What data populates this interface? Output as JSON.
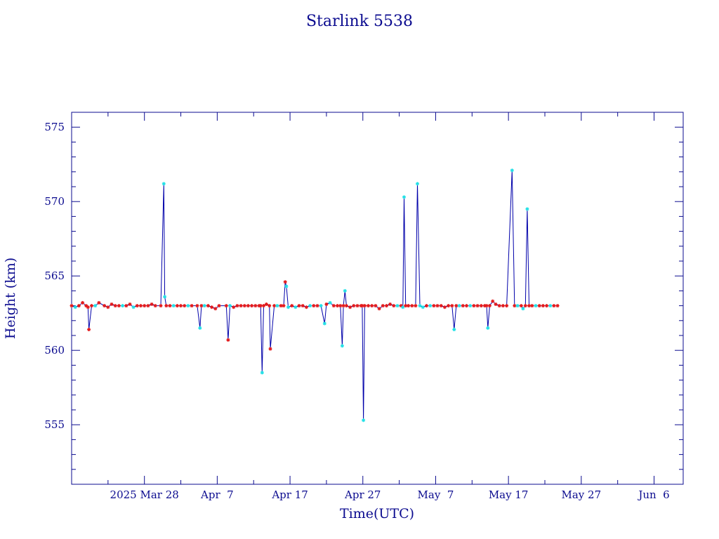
{
  "chart_data": {
    "type": "line",
    "title": "Starlink 5538",
    "xlabel": "Time(UTC)",
    "ylabel": "Height (km)",
    "x_axis": {
      "type": "date",
      "start": "2025-03-18",
      "end": "2025-06-10",
      "tick_labels": [
        {
          "date": "2025-03-28",
          "label": "2025 Mar 28"
        },
        {
          "date": "2025-04-07",
          "label": "Apr  7"
        },
        {
          "date": "2025-04-17",
          "label": "Apr 17"
        },
        {
          "date": "2025-04-27",
          "label": "Apr 27"
        },
        {
          "date": "2025-05-07",
          "label": "May  7"
        },
        {
          "date": "2025-05-17",
          "label": "May 17"
        },
        {
          "date": "2025-05-27",
          "label": "May 27"
        },
        {
          "date": "2025-06-06",
          "label": "Jun  6"
        }
      ],
      "major_tick_days": 10,
      "minor_tick_days": 5
    },
    "y_axis": {
      "range": [
        551,
        576
      ],
      "ticks": [
        555,
        560,
        565,
        570,
        575
      ],
      "minor_step": 1
    },
    "grid": false,
    "series": [
      {
        "line_color": "#0000aa",
        "points": [
          {
            "x": "2025-03-18T00:00",
            "y": 563.0,
            "c": "r"
          },
          {
            "x": "2025-03-18T12:00",
            "y": 562.9,
            "c": "c"
          },
          {
            "x": "2025-03-19T00:00",
            "y": 563.0,
            "c": "r"
          },
          {
            "x": "2025-03-19T12:00",
            "y": 563.2,
            "c": "r"
          },
          {
            "x": "2025-03-20T00:00",
            "y": 563.0,
            "c": "r"
          },
          {
            "x": "2025-03-20T06:00",
            "y": 562.9,
            "c": "r"
          },
          {
            "x": "2025-03-20T09:00",
            "y": 561.4,
            "c": "r"
          },
          {
            "x": "2025-03-20T18:00",
            "y": 563.0,
            "c": "r"
          },
          {
            "x": "2025-03-21T06:00",
            "y": 563.0,
            "c": "c"
          },
          {
            "x": "2025-03-21T18:00",
            "y": 563.2,
            "c": "r"
          },
          {
            "x": "2025-03-22T12:00",
            "y": 563.0,
            "c": "r"
          },
          {
            "x": "2025-03-23T00:00",
            "y": 562.9,
            "c": "r"
          },
          {
            "x": "2025-03-23T12:00",
            "y": 563.1,
            "c": "r"
          },
          {
            "x": "2025-03-24T00:00",
            "y": 563.0,
            "c": "r"
          },
          {
            "x": "2025-03-24T12:00",
            "y": 563.0,
            "c": "r"
          },
          {
            "x": "2025-03-25T00:00",
            "y": 563.0,
            "c": "c"
          },
          {
            "x": "2025-03-25T12:00",
            "y": 563.0,
            "c": "r"
          },
          {
            "x": "2025-03-26T00:00",
            "y": 563.1,
            "c": "r"
          },
          {
            "x": "2025-03-26T12:00",
            "y": 562.9,
            "c": "c"
          },
          {
            "x": "2025-03-27T00:00",
            "y": 563.0,
            "c": "r"
          },
          {
            "x": "2025-03-27T12:00",
            "y": 563.0,
            "c": "r"
          },
          {
            "x": "2025-03-28T00:00",
            "y": 563.0,
            "c": "r"
          },
          {
            "x": "2025-03-28T12:00",
            "y": 563.0,
            "c": "r"
          },
          {
            "x": "2025-03-29T00:00",
            "y": 563.1,
            "c": "r"
          },
          {
            "x": "2025-03-29T12:00",
            "y": 563.0,
            "c": "r"
          },
          {
            "x": "2025-03-30T06:00",
            "y": 563.0,
            "c": "r"
          },
          {
            "x": "2025-03-30T16:00",
            "y": 571.2,
            "c": "c"
          },
          {
            "x": "2025-03-30T19:00",
            "y": 563.6,
            "c": "c"
          },
          {
            "x": "2025-03-31T00:00",
            "y": 563.0,
            "c": "r"
          },
          {
            "x": "2025-03-31T12:00",
            "y": 563.0,
            "c": "r"
          },
          {
            "x": "2025-04-01T00:00",
            "y": 563.0,
            "c": "c"
          },
          {
            "x": "2025-04-01T12:00",
            "y": 563.0,
            "c": "r"
          },
          {
            "x": "2025-04-02T00:00",
            "y": 563.0,
            "c": "r"
          },
          {
            "x": "2025-04-02T12:00",
            "y": 563.0,
            "c": "r"
          },
          {
            "x": "2025-04-03T00:00",
            "y": 563.0,
            "c": "c"
          },
          {
            "x": "2025-04-03T12:00",
            "y": 563.0,
            "c": "r"
          },
          {
            "x": "2025-04-04T06:00",
            "y": 563.0,
            "c": "r"
          },
          {
            "x": "2025-04-04T15:00",
            "y": 561.5,
            "c": "c"
          },
          {
            "x": "2025-04-04T20:00",
            "y": 563.0,
            "c": "r"
          },
          {
            "x": "2025-04-05T06:00",
            "y": 563.0,
            "c": "c"
          },
          {
            "x": "2025-04-05T18:00",
            "y": 563.0,
            "c": "r"
          },
          {
            "x": "2025-04-06T06:00",
            "y": 562.9,
            "c": "r"
          },
          {
            "x": "2025-04-06T18:00",
            "y": 562.8,
            "c": "r"
          },
          {
            "x": "2025-04-07T06:00",
            "y": 563.0,
            "c": "r"
          },
          {
            "x": "2025-04-08T06:00",
            "y": 563.0,
            "c": "r"
          },
          {
            "x": "2025-04-08T12:00",
            "y": 560.7,
            "c": "r"
          },
          {
            "x": "2025-04-08T18:00",
            "y": 563.0,
            "c": "c"
          },
          {
            "x": "2025-04-09T06:00",
            "y": 562.9,
            "c": "r"
          },
          {
            "x": "2025-04-09T18:00",
            "y": 563.0,
            "c": "r"
          },
          {
            "x": "2025-04-10T06:00",
            "y": 563.0,
            "c": "r"
          },
          {
            "x": "2025-04-10T18:00",
            "y": 563.0,
            "c": "r"
          },
          {
            "x": "2025-04-11T06:00",
            "y": 563.0,
            "c": "r"
          },
          {
            "x": "2025-04-11T18:00",
            "y": 563.0,
            "c": "r"
          },
          {
            "x": "2025-04-12T06:00",
            "y": 563.0,
            "c": "r"
          },
          {
            "x": "2025-04-12T18:00",
            "y": 563.0,
            "c": "r"
          },
          {
            "x": "2025-04-12T23:00",
            "y": 563.0,
            "c": "r"
          },
          {
            "x": "2025-04-13T04:00",
            "y": 558.5,
            "c": "c"
          },
          {
            "x": "2025-04-13T09:00",
            "y": 563.0,
            "c": "r"
          },
          {
            "x": "2025-04-13T18:00",
            "y": 563.1,
            "c": "r"
          },
          {
            "x": "2025-04-14T04:00",
            "y": 563.0,
            "c": "r"
          },
          {
            "x": "2025-04-14T07:00",
            "y": 560.1,
            "c": "r"
          },
          {
            "x": "2025-04-14T20:00",
            "y": 563.0,
            "c": "r"
          },
          {
            "x": "2025-04-15T06:00",
            "y": 563.0,
            "c": "c"
          },
          {
            "x": "2025-04-15T18:00",
            "y": 563.0,
            "c": "r"
          },
          {
            "x": "2025-04-16T03:00",
            "y": 563.0,
            "c": "r"
          },
          {
            "x": "2025-04-16T08:00",
            "y": 564.6,
            "c": "r"
          },
          {
            "x": "2025-04-16T12:00",
            "y": 564.3,
            "c": "c"
          },
          {
            "x": "2025-04-16T18:00",
            "y": 562.9,
            "c": "c"
          },
          {
            "x": "2025-04-17T06:00",
            "y": 563.0,
            "c": "r"
          },
          {
            "x": "2025-04-17T18:00",
            "y": 562.9,
            "c": "c"
          },
          {
            "x": "2025-04-18T06:00",
            "y": 563.0,
            "c": "r"
          },
          {
            "x": "2025-04-18T18:00",
            "y": 563.0,
            "c": "r"
          },
          {
            "x": "2025-04-19T06:00",
            "y": 562.9,
            "c": "r"
          },
          {
            "x": "2025-04-19T18:00",
            "y": 563.0,
            "c": "c"
          },
          {
            "x": "2025-04-20T06:00",
            "y": 563.0,
            "c": "r"
          },
          {
            "x": "2025-04-20T18:00",
            "y": 563.0,
            "c": "r"
          },
          {
            "x": "2025-04-21T06:00",
            "y": 563.0,
            "c": "c"
          },
          {
            "x": "2025-04-21T18:00",
            "y": 561.8,
            "c": "c"
          },
          {
            "x": "2025-04-22T00:00",
            "y": 563.1,
            "c": "r"
          },
          {
            "x": "2025-04-22T12:00",
            "y": 563.2,
            "c": "c"
          },
          {
            "x": "2025-04-23T00:00",
            "y": 563.0,
            "c": "r"
          },
          {
            "x": "2025-04-23T12:00",
            "y": 563.0,
            "c": "r"
          },
          {
            "x": "2025-04-23T22:00",
            "y": 563.0,
            "c": "r"
          },
          {
            "x": "2025-04-24T04:00",
            "y": 560.3,
            "c": "c"
          },
          {
            "x": "2025-04-24T08:00",
            "y": 563.0,
            "c": "r"
          },
          {
            "x": "2025-04-24T13:00",
            "y": 564.0,
            "c": "c"
          },
          {
            "x": "2025-04-24T18:00",
            "y": 563.0,
            "c": "r"
          },
          {
            "x": "2025-04-25T06:00",
            "y": 562.9,
            "c": "r"
          },
          {
            "x": "2025-04-25T18:00",
            "y": 563.0,
            "c": "r"
          },
          {
            "x": "2025-04-26T06:00",
            "y": 563.0,
            "c": "r"
          },
          {
            "x": "2025-04-26T18:00",
            "y": 563.0,
            "c": "r"
          },
          {
            "x": "2025-04-26T22:00",
            "y": 563.0,
            "c": "r"
          },
          {
            "x": "2025-04-27T02:00",
            "y": 555.3,
            "c": "c"
          },
          {
            "x": "2025-04-27T06:00",
            "y": 563.0,
            "c": "r"
          },
          {
            "x": "2025-04-27T18:00",
            "y": 563.0,
            "c": "r"
          },
          {
            "x": "2025-04-28T06:00",
            "y": 563.0,
            "c": "r"
          },
          {
            "x": "2025-04-28T18:00",
            "y": 563.0,
            "c": "r"
          },
          {
            "x": "2025-04-29T06:00",
            "y": 562.8,
            "c": "r"
          },
          {
            "x": "2025-04-29T18:00",
            "y": 563.0,
            "c": "r"
          },
          {
            "x": "2025-04-30T06:00",
            "y": 563.0,
            "c": "r"
          },
          {
            "x": "2025-04-30T18:00",
            "y": 563.1,
            "c": "r"
          },
          {
            "x": "2025-05-01T06:00",
            "y": 563.0,
            "c": "r"
          },
          {
            "x": "2025-05-01T18:00",
            "y": 563.0,
            "c": "c"
          },
          {
            "x": "2025-05-02T06:00",
            "y": 563.0,
            "c": "r"
          },
          {
            "x": "2025-05-02T12:00",
            "y": 562.9,
            "c": "c"
          },
          {
            "x": "2025-05-02T16:00",
            "y": 570.3,
            "c": "c"
          },
          {
            "x": "2025-05-02T21:00",
            "y": 563.0,
            "c": "r"
          },
          {
            "x": "2025-05-03T06:00",
            "y": 563.0,
            "c": "r"
          },
          {
            "x": "2025-05-03T18:00",
            "y": 563.0,
            "c": "r"
          },
          {
            "x": "2025-05-04T06:00",
            "y": 563.0,
            "c": "r"
          },
          {
            "x": "2025-05-04T12:00",
            "y": 571.2,
            "c": "c"
          },
          {
            "x": "2025-05-04T20:00",
            "y": 563.0,
            "c": "c"
          },
          {
            "x": "2025-05-05T06:00",
            "y": 562.9,
            "c": "c"
          },
          {
            "x": "2025-05-05T18:00",
            "y": 563.0,
            "c": "r"
          },
          {
            "x": "2025-05-06T06:00",
            "y": 563.0,
            "c": "c"
          },
          {
            "x": "2025-05-06T18:00",
            "y": 563.0,
            "c": "r"
          },
          {
            "x": "2025-05-07T06:00",
            "y": 563.0,
            "c": "r"
          },
          {
            "x": "2025-05-07T18:00",
            "y": 563.0,
            "c": "r"
          },
          {
            "x": "2025-05-08T06:00",
            "y": 562.9,
            "c": "r"
          },
          {
            "x": "2025-05-08T18:00",
            "y": 563.0,
            "c": "r"
          },
          {
            "x": "2025-05-09T06:00",
            "y": 563.0,
            "c": "r"
          },
          {
            "x": "2025-05-09T13:00",
            "y": 561.4,
            "c": "c"
          },
          {
            "x": "2025-05-09T20:00",
            "y": 563.0,
            "c": "r"
          },
          {
            "x": "2025-05-10T06:00",
            "y": 563.0,
            "c": "c"
          },
          {
            "x": "2025-05-10T18:00",
            "y": 563.0,
            "c": "r"
          },
          {
            "x": "2025-05-11T06:00",
            "y": 563.0,
            "c": "r"
          },
          {
            "x": "2025-05-11T18:00",
            "y": 563.0,
            "c": "c"
          },
          {
            "x": "2025-05-12T06:00",
            "y": 563.0,
            "c": "r"
          },
          {
            "x": "2025-05-12T18:00",
            "y": 563.0,
            "c": "r"
          },
          {
            "x": "2025-05-13T06:00",
            "y": 563.0,
            "c": "r"
          },
          {
            "x": "2025-05-13T18:00",
            "y": 563.0,
            "c": "r"
          },
          {
            "x": "2025-05-14T00:00",
            "y": 563.0,
            "c": "r"
          },
          {
            "x": "2025-05-14T04:00",
            "y": 561.5,
            "c": "c"
          },
          {
            "x": "2025-05-14T10:00",
            "y": 563.0,
            "c": "r"
          },
          {
            "x": "2025-05-14T20:00",
            "y": 563.3,
            "c": "r"
          },
          {
            "x": "2025-05-15T06:00",
            "y": 563.1,
            "c": "r"
          },
          {
            "x": "2025-05-15T18:00",
            "y": 563.0,
            "c": "r"
          },
          {
            "x": "2025-05-16T06:00",
            "y": 563.0,
            "c": "r"
          },
          {
            "x": "2025-05-16T18:00",
            "y": 563.0,
            "c": "r"
          },
          {
            "x": "2025-05-17T12:00",
            "y": 572.1,
            "c": "c"
          },
          {
            "x": "2025-05-17T20:00",
            "y": 563.0,
            "c": "r"
          },
          {
            "x": "2025-05-18T06:00",
            "y": 563.0,
            "c": "c"
          },
          {
            "x": "2025-05-18T18:00",
            "y": 563.0,
            "c": "r"
          },
          {
            "x": "2025-05-19T00:00",
            "y": 562.8,
            "c": "c"
          },
          {
            "x": "2025-05-19T08:00",
            "y": 563.0,
            "c": "r"
          },
          {
            "x": "2025-05-19T14:00",
            "y": 569.5,
            "c": "c"
          },
          {
            "x": "2025-05-19T20:00",
            "y": 563.0,
            "c": "r"
          },
          {
            "x": "2025-05-20T06:00",
            "y": 563.0,
            "c": "r"
          },
          {
            "x": "2025-05-20T18:00",
            "y": 563.0,
            "c": "c"
          },
          {
            "x": "2025-05-21T06:00",
            "y": 563.0,
            "c": "r"
          },
          {
            "x": "2025-05-21T18:00",
            "y": 563.0,
            "c": "r"
          },
          {
            "x": "2025-05-22T06:00",
            "y": 563.0,
            "c": "r"
          },
          {
            "x": "2025-05-22T18:00",
            "y": 563.0,
            "c": "c"
          },
          {
            "x": "2025-05-23T06:00",
            "y": 563.0,
            "c": "r"
          },
          {
            "x": "2025-05-23T18:00",
            "y": 563.0,
            "c": "r"
          }
        ]
      }
    ],
    "marker_colors": {
      "r": "#e31a1c",
      "c": "#22e0e6"
    }
  }
}
